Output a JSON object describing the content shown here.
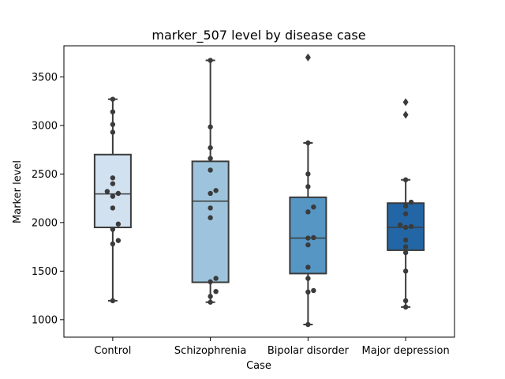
{
  "chart_data": {
    "type": "box",
    "title": "marker_507 level by disease case",
    "xlabel": "Case",
    "ylabel": "Marker level",
    "ylim": [
      820,
      3820
    ],
    "yticks": [
      1000,
      1500,
      2000,
      2500,
      3000,
      3500
    ],
    "grid": false,
    "categories": [
      "Control",
      "Schizophrenia",
      "Bipolar disorder",
      "Major depression"
    ],
    "colors": {
      "Control": "#d2e1f0",
      "Schizophrenia": "#9dc4dc",
      "Bipolar disorder": "#5596c4",
      "Major depression": "#2366a6",
      "edge": "#3b3b3b",
      "points": "#3b3b3b"
    },
    "series": [
      {
        "category": "Control",
        "whisker_low": 1195,
        "q1": 1950,
        "median": 2295,
        "q3": 2700,
        "whisker_high": 3270,
        "outliers": [],
        "points": [
          3270,
          3140,
          3010,
          2930,
          2460,
          2400,
          2320,
          2300,
          2270,
          2150,
          1985,
          1930,
          1815,
          1780,
          1195
        ]
      },
      {
        "category": "Schizophrenia",
        "whisker_low": 1180,
        "q1": 1385,
        "median": 2220,
        "q3": 2630,
        "whisker_high": 3670,
        "outliers": [],
        "points": [
          3670,
          2985,
          2770,
          2660,
          2540,
          2330,
          2300,
          2150,
          2050,
          1425,
          1390,
          1290,
          1240,
          1180
        ]
      },
      {
        "category": "Bipolar disorder",
        "whisker_low": 950,
        "q1": 1475,
        "median": 1840,
        "q3": 2260,
        "whisker_high": 2820,
        "outliers": [
          3700
        ],
        "points": [
          2820,
          2500,
          2370,
          2160,
          2110,
          1845,
          1840,
          1770,
          1540,
          1425,
          1300,
          1285,
          950
        ]
      },
      {
        "category": "Major depression",
        "whisker_low": 1130,
        "q1": 1715,
        "median": 1950,
        "q3": 2200,
        "whisker_high": 2440,
        "outliers": [
          3240,
          3110
        ],
        "points": [
          2440,
          2210,
          2170,
          2090,
          1975,
          1960,
          1950,
          1820,
          1750,
          1690,
          1500,
          1195,
          1130
        ]
      }
    ]
  }
}
